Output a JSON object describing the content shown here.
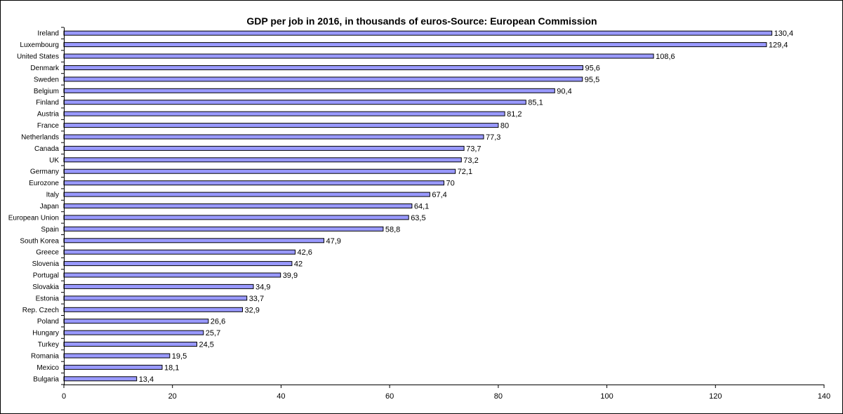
{
  "chart_data": {
    "type": "bar",
    "orientation": "horizontal",
    "title": "GDP per job in 2016, in thousands of euros-Source: European Commission",
    "xlabel": "",
    "ylabel": "",
    "xlim": [
      0,
      140
    ],
    "x_ticks": [
      0,
      20,
      40,
      60,
      80,
      100,
      120,
      140
    ],
    "grid": false,
    "legend": "none",
    "bar_color": "#9999FF",
    "bar_edge_color": "#000000",
    "categories": [
      "Ireland",
      "Luxembourg",
      "United States",
      "Denmark",
      "Sweden",
      "Belgium",
      "Finland",
      "Austria",
      "France",
      "Netherlands",
      "Canada",
      "UK",
      "Germany",
      "Eurozone",
      "Italy",
      "Japan",
      "European Union",
      "Spain",
      "South Korea",
      "Greece",
      "Slovenia",
      "Portugal",
      "Slovakia",
      "Estonia",
      "Rep. Czech",
      "Poland",
      "Hungary",
      "Turkey",
      "Romania",
      "Mexico",
      "Bulgaria"
    ],
    "values": [
      130.4,
      129.4,
      108.6,
      95.6,
      95.5,
      90.4,
      85.1,
      81.2,
      80,
      77.3,
      73.7,
      73.2,
      72.1,
      70,
      67.4,
      64.1,
      63.5,
      58.8,
      47.9,
      42.6,
      42,
      39.9,
      34.9,
      33.7,
      32.9,
      26.6,
      25.7,
      24.5,
      19.5,
      18.1,
      13.4
    ],
    "value_labels": [
      "130,4",
      "129,4",
      "108,6",
      "95,6",
      "95,5",
      "90,4",
      "85,1",
      "81,2",
      "80",
      "77,3",
      "73,7",
      "73,2",
      "72,1",
      "70",
      "67,4",
      "64,1",
      "63,5",
      "58,8",
      "47,9",
      "42,6",
      "42",
      "39,9",
      "34,9",
      "33,7",
      "32,9",
      "26,6",
      "25,7",
      "24,5",
      "19,5",
      "18,1",
      "13,4"
    ]
  }
}
